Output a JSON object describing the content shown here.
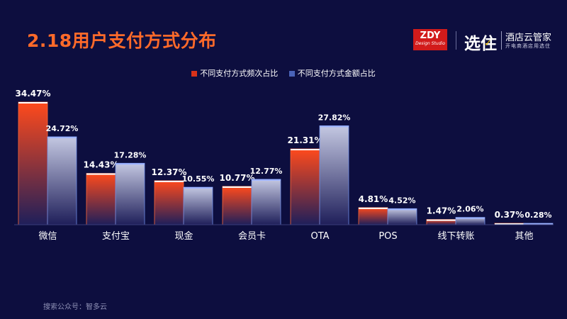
{
  "title": "2.18用户支付方式分布",
  "brand": {
    "zdy_logo": "ZDY",
    "zdy_sub": "Design Studio",
    "xz_logo": "选住",
    "name": "酒店云管家",
    "slogan": "开电商酒店用选住"
  },
  "legend": {
    "series1": "不同支付方式频次占比",
    "series2": "不同支付方式金额占比"
  },
  "footer": "搜索公众号：智多云",
  "colors": {
    "series1_top": "#ff4a1c",
    "series1_bottom": "#1a1b52",
    "series2_top": "#c9cde6",
    "series2_bottom": "#1a1b52",
    "background": "#0d0e3f"
  },
  "chart_data": {
    "type": "bar",
    "categories": [
      "微信",
      "支付宝",
      "现金",
      "会员卡",
      "OTA",
      "POS",
      "线下转账",
      "其他"
    ],
    "series": [
      {
        "name": "不同支付方式频次占比",
        "values": [
          34.47,
          14.43,
          12.37,
          10.77,
          21.31,
          4.81,
          1.47,
          0.37
        ]
      },
      {
        "name": "不同支付方式金额占比",
        "values": [
          24.72,
          17.28,
          10.55,
          12.77,
          27.82,
          4.52,
          2.06,
          0.28
        ]
      }
    ],
    "data_labels": [
      [
        "34.47%",
        "14.43%",
        "12.37%",
        "10.77%",
        "21.31%",
        "4.81%",
        "1.47%",
        "0.37%"
      ],
      [
        "24.72%",
        "17.28%",
        "10.55%",
        "12.77%",
        "27.82%",
        "4.52%",
        "2.06%",
        "0.28%"
      ]
    ],
    "ylim": [
      0,
      34.47
    ],
    "grid": false,
    "legend_position": "top-center"
  }
}
